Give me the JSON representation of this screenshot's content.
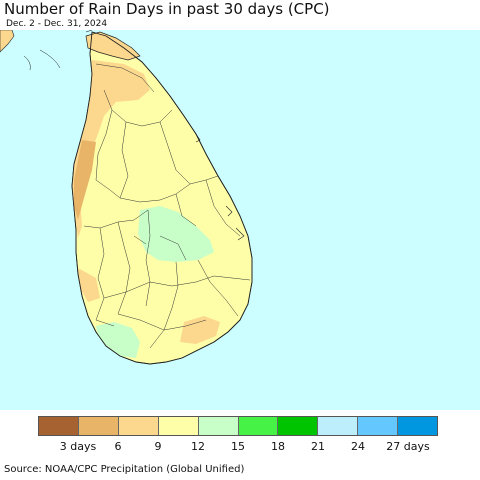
{
  "header": {
    "title": "Number of Rain Days in past 30 days (CPC)",
    "subtitle": "Dec. 2 - Dec. 31, 2024"
  },
  "map": {
    "region": "Sri Lanka",
    "ocean_color": "#ccfeff",
    "predominant_class": "9-12"
  },
  "legend": {
    "colors": [
      "#a66230",
      "#e8b468",
      "#fcd88e",
      "#fefea8",
      "#c8ffc8",
      "#46f246",
      "#00c400",
      "#bdeefc",
      "#64c8ff",
      "#0096e0"
    ],
    "labels": [
      "3 days",
      "6",
      "9",
      "12",
      "15",
      "18",
      "21",
      "24",
      "27 days"
    ]
  },
  "footer": {
    "source": "Source: NOAA/CPC Precipitation (Global Unified)"
  }
}
